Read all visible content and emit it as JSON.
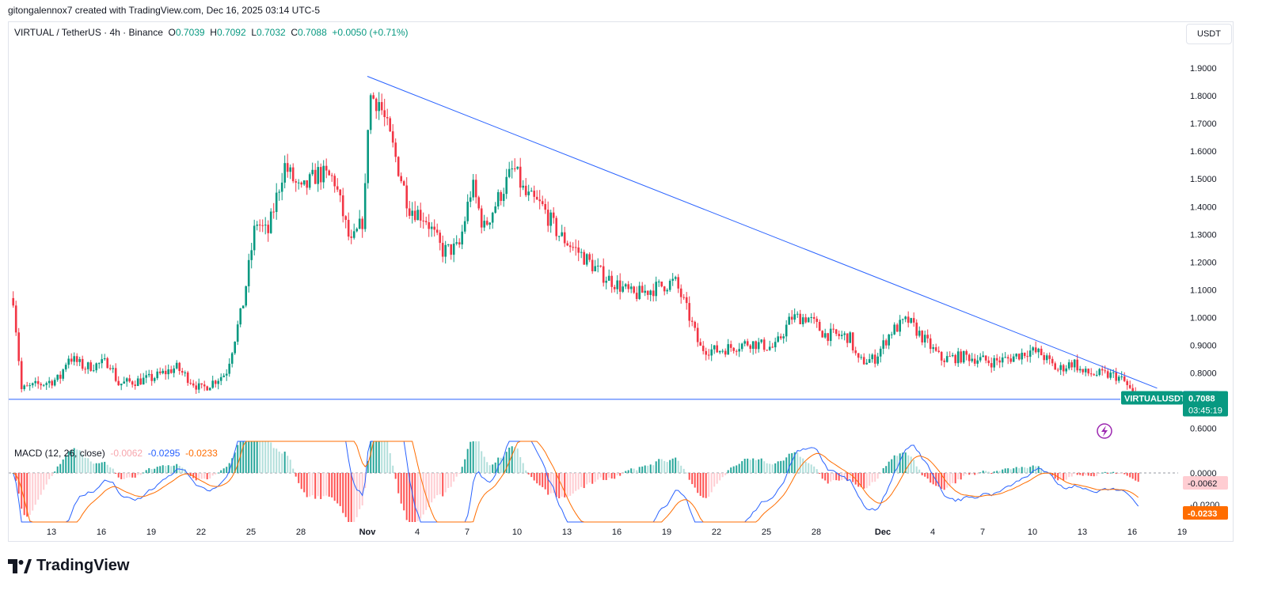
{
  "header": {
    "attribution": "gitongalennox7 created with TradingView.com, Dec 16, 2025 03:14 UTC-5",
    "symbol": "VIRTUAL / TetherUS · 4h · Binance",
    "open_label": "O",
    "open": "0.7039",
    "high_label": "H",
    "high": "0.7092",
    "low_label": "L",
    "low": "0.7032",
    "close_label": "C",
    "close": "0.7088",
    "change": "+0.0050 (+0.71%)"
  },
  "currency_button": "USDT",
  "brand": "TradingView",
  "colors": {
    "up": "#089981",
    "down": "#f23645",
    "trendline": "#2962ff",
    "macd": "#2962ff",
    "signal": "#ff6d00"
  },
  "chart_data": [
    {
      "type": "candlestick",
      "symbol": "VIRTUALUSDT",
      "interval": "4h",
      "y_ticks": [
        "1.9000",
        "1.8000",
        "1.7000",
        "1.6000",
        "1.5000",
        "1.4000",
        "1.3000",
        "1.2000",
        "1.1000",
        "1.0000",
        "0.9000",
        "0.8000",
        "0.6000"
      ],
      "ylim": [
        0.55,
        1.95
      ],
      "x_ticks": [
        "13",
        "16",
        "19",
        "22",
        "25",
        "28",
        "Nov",
        "4",
        "7",
        "10",
        "13",
        "16",
        "19",
        "22",
        "25",
        "28",
        "Dec",
        "4",
        "7",
        "10",
        "13",
        "16",
        "19"
      ],
      "x_tick_pos": [
        0,
        3,
        6,
        9,
        12,
        15,
        19,
        22,
        25,
        28,
        31,
        34,
        37,
        40,
        43,
        46,
        50,
        53,
        56,
        59,
        62,
        65,
        68
      ],
      "x_unit": "days since the tick labelled 13 (Oct 13)",
      "anchors": [
        {
          "d": -2.3,
          "p": 1.07
        },
        {
          "d": -1.8,
          "p": 0.74
        },
        {
          "d": 0.5,
          "p": 0.78
        },
        {
          "d": 1.0,
          "p": 0.86
        },
        {
          "d": 2.0,
          "p": 0.82
        },
        {
          "d": 3.5,
          "p": 0.84
        },
        {
          "d": 4.0,
          "p": 0.76
        },
        {
          "d": 6.0,
          "p": 0.78
        },
        {
          "d": 7.5,
          "p": 0.82
        },
        {
          "d": 9.0,
          "p": 0.74
        },
        {
          "d": 10.5,
          "p": 0.8
        },
        {
          "d": 11.5,
          "p": 1.04
        },
        {
          "d": 12.3,
          "p": 1.35
        },
        {
          "d": 13.0,
          "p": 1.3
        },
        {
          "d": 14.0,
          "p": 1.55
        },
        {
          "d": 15.0,
          "p": 1.45
        },
        {
          "d": 16.0,
          "p": 1.52
        },
        {
          "d": 17.0,
          "p": 1.5
        },
        {
          "d": 18.0,
          "p": 1.26
        },
        {
          "d": 18.8,
          "p": 1.36
        },
        {
          "d": 19.1,
          "p": 1.8
        },
        {
          "d": 19.7,
          "p": 1.78
        },
        {
          "d": 20.5,
          "p": 1.62
        },
        {
          "d": 21.5,
          "p": 1.4
        },
        {
          "d": 22.5,
          "p": 1.36
        },
        {
          "d": 23.5,
          "p": 1.24
        },
        {
          "d": 24.5,
          "p": 1.25
        },
        {
          "d": 25.3,
          "p": 1.48
        },
        {
          "d": 26.0,
          "p": 1.32
        },
        {
          "d": 26.8,
          "p": 1.42
        },
        {
          "d": 27.8,
          "p": 1.54
        },
        {
          "d": 28.5,
          "p": 1.44
        },
        {
          "d": 29.5,
          "p": 1.4
        },
        {
          "d": 30.5,
          "p": 1.3
        },
        {
          "d": 32.0,
          "p": 1.22
        },
        {
          "d": 33.0,
          "p": 1.16
        },
        {
          "d": 34.0,
          "p": 1.12
        },
        {
          "d": 35.0,
          "p": 1.08
        },
        {
          "d": 36.0,
          "p": 1.1
        },
        {
          "d": 37.5,
          "p": 1.13
        },
        {
          "d": 38.0,
          "p": 1.06
        },
        {
          "d": 38.5,
          "p": 0.98
        },
        {
          "d": 39.0,
          "p": 0.89
        },
        {
          "d": 40.0,
          "p": 0.88
        },
        {
          "d": 42.0,
          "p": 0.91
        },
        {
          "d": 43.5,
          "p": 0.89
        },
        {
          "d": 44.5,
          "p": 1.0
        },
        {
          "d": 45.5,
          "p": 1.0
        },
        {
          "d": 46.5,
          "p": 0.94
        },
        {
          "d": 48.0,
          "p": 0.93
        },
        {
          "d": 48.5,
          "p": 0.84
        },
        {
          "d": 49.5,
          "p": 0.85
        },
        {
          "d": 50.5,
          "p": 0.95
        },
        {
          "d": 51.5,
          "p": 0.99
        },
        {
          "d": 52.5,
          "p": 0.92
        },
        {
          "d": 53.5,
          "p": 0.85
        },
        {
          "d": 55.0,
          "p": 0.86
        },
        {
          "d": 56.5,
          "p": 0.84
        },
        {
          "d": 57.5,
          "p": 0.85
        },
        {
          "d": 58.8,
          "p": 0.88
        },
        {
          "d": 59.5,
          "p": 0.87
        },
        {
          "d": 60.5,
          "p": 0.81
        },
        {
          "d": 61.5,
          "p": 0.84
        },
        {
          "d": 62.0,
          "p": 0.8
        },
        {
          "d": 64.0,
          "p": 0.79
        },
        {
          "d": 64.5,
          "p": 0.77
        },
        {
          "d": 65.2,
          "p": 0.71
        },
        {
          "d": 65.5,
          "p": 0.7088
        }
      ],
      "horizontal_line": 0.705,
      "trendline": [
        {
          "d": 19.0,
          "p": 1.87
        },
        {
          "d": 66.5,
          "p": 0.745
        }
      ],
      "last_label": "VIRTUALUSDT",
      "last_price": "0.7088",
      "high_price": "0.7092",
      "countdown": "03:45:19"
    },
    {
      "type": "macd",
      "legend": "MACD (12, 26, close)",
      "values": [
        "-0.0062",
        "-0.0295",
        "-0.0233"
      ],
      "y_ticks": [
        "0.0000",
        "-0.0200"
      ],
      "hist_label": "-0.0062",
      "signal_label": "-0.0233"
    }
  ]
}
